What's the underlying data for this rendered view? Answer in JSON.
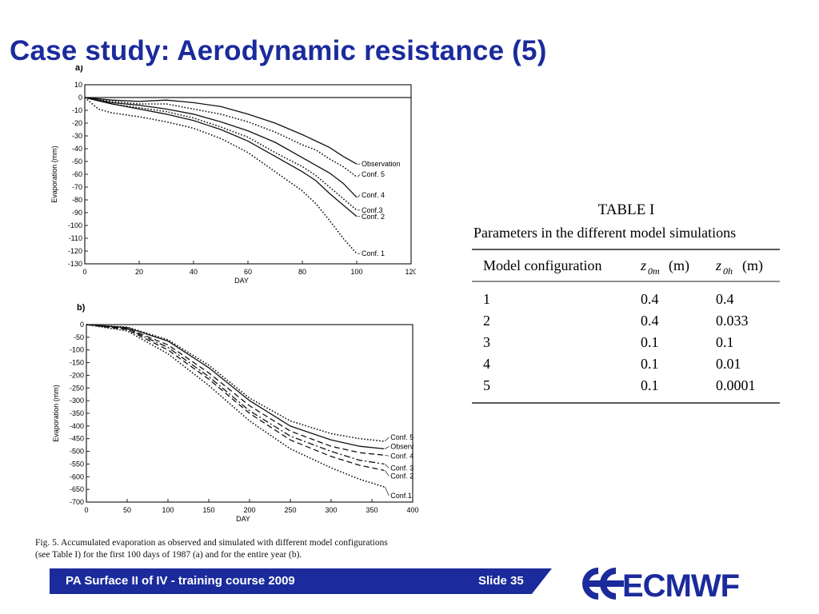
{
  "slide": {
    "title": "Case study: Aerodynamic resistance (5)",
    "footer_course": "PA Surface II of IV - training course 2009",
    "footer_slide": "Slide 35",
    "logo_text": "ECMWF",
    "colors": {
      "title": "#1b2b9c",
      "footer": "#1b2b9c"
    }
  },
  "caption": {
    "line1": "Fig. 5.   Accumulated evaporation as observed and simulated with different model configurations",
    "line2": "(see Table I) for the first 100 days of 1987 (a) and for the entire year (b)."
  },
  "table": {
    "title": "TABLE I",
    "subtitle": "Parameters in the different model simulations",
    "headers": [
      "Model configuration",
      "z0m (m)",
      "z0h (m)"
    ],
    "rows": [
      [
        "1",
        "0.4",
        "0.4"
      ],
      [
        "2",
        "0.4",
        "0.033"
      ],
      [
        "3",
        "0.1",
        "0.1"
      ],
      [
        "4",
        "0.1",
        "0.01"
      ],
      [
        "5",
        "0.1",
        "0.0001"
      ]
    ]
  },
  "chart_data": [
    {
      "type": "line",
      "panel": "a)",
      "xlabel": "DAY",
      "ylabel": "Evaporation (mm)",
      "xlim": [
        0,
        120
      ],
      "ylim": [
        -130,
        10
      ],
      "xticks": [
        0,
        20,
        40,
        60,
        80,
        100,
        120
      ],
      "yticks": [
        10,
        0,
        -10,
        -20,
        -30,
        -40,
        -50,
        -60,
        -70,
        -80,
        -90,
        -100,
        -110,
        -120,
        -130
      ],
      "reference_line": 0,
      "series": [
        {
          "name": "Observation",
          "style": "solid",
          "x": [
            0,
            10,
            20,
            30,
            40,
            50,
            60,
            70,
            80,
            85,
            90,
            95,
            100
          ],
          "y": [
            0,
            -2,
            -3,
            -2,
            -4,
            -7,
            -13,
            -20,
            -29,
            -34,
            -39,
            -46,
            -52
          ]
        },
        {
          "name": "Conf. 5",
          "style": "dotted",
          "x": [
            0,
            10,
            20,
            30,
            40,
            50,
            60,
            70,
            80,
            85,
            90,
            95,
            100
          ],
          "y": [
            0,
            -3,
            -5,
            -5,
            -9,
            -13,
            -19,
            -27,
            -37,
            -41,
            -48,
            -54,
            -62
          ]
        },
        {
          "name": "Conf. 4",
          "style": "solid",
          "x": [
            0,
            10,
            20,
            30,
            40,
            50,
            60,
            70,
            80,
            85,
            90,
            95,
            100
          ],
          "y": [
            0,
            -4,
            -6,
            -9,
            -13,
            -19,
            -26,
            -35,
            -47,
            -53,
            -59,
            -67,
            -78
          ]
        },
        {
          "name": "Conf.3",
          "style": "dotted",
          "x": [
            0,
            10,
            20,
            30,
            40,
            50,
            60,
            70,
            80,
            85,
            90,
            95,
            100
          ],
          "y": [
            0,
            -5,
            -8,
            -11,
            -16,
            -23,
            -31,
            -43,
            -54,
            -61,
            -70,
            -79,
            -88
          ]
        },
        {
          "name": "Conf. 2",
          "style": "solid",
          "x": [
            0,
            10,
            20,
            30,
            40,
            50,
            60,
            70,
            80,
            85,
            90,
            95,
            100
          ],
          "y": [
            0,
            -5,
            -9,
            -13,
            -18,
            -25,
            -34,
            -46,
            -58,
            -65,
            -75,
            -84,
            -93
          ]
        },
        {
          "name": "Conf. 1",
          "style": "dotted",
          "x": [
            0,
            5,
            10,
            20,
            30,
            40,
            50,
            60,
            70,
            80,
            85,
            90,
            95,
            100
          ],
          "y": [
            0,
            -9,
            -12,
            -15,
            -19,
            -24,
            -32,
            -43,
            -58,
            -73,
            -83,
            -96,
            -110,
            -122
          ]
        }
      ]
    },
    {
      "type": "line",
      "panel": "b)",
      "xlabel": "DAY",
      "ylabel": "Evaporation (mm)",
      "xlim": [
        0,
        400
      ],
      "ylim": [
        -700,
        0
      ],
      "xticks": [
        0,
        50,
        100,
        150,
        200,
        250,
        300,
        350,
        400
      ],
      "yticks": [
        0,
        -50,
        -100,
        -150,
        -200,
        -250,
        -300,
        -350,
        -400,
        -450,
        -500,
        -550,
        -600,
        -650,
        -700
      ],
      "series": [
        {
          "name": "Conf. 5",
          "style": "dotted",
          "x": [
            0,
            50,
            100,
            150,
            200,
            250,
            300,
            335,
            365
          ],
          "y": [
            0,
            -10,
            -60,
            -160,
            -290,
            -380,
            -430,
            -450,
            -460
          ]
        },
        {
          "name": "Observ",
          "style": "solid",
          "x": [
            0,
            50,
            100,
            150,
            200,
            250,
            300,
            335,
            365
          ],
          "y": [
            0,
            -12,
            -65,
            -170,
            -300,
            -400,
            -455,
            -480,
            -490
          ]
        },
        {
          "name": "Conf. 4",
          "style": "dashed",
          "x": [
            0,
            50,
            100,
            150,
            200,
            250,
            300,
            335,
            365
          ],
          "y": [
            0,
            -15,
            -80,
            -190,
            -320,
            -420,
            -480,
            -505,
            -515
          ]
        },
        {
          "name": "Conf. 3",
          "style": "dashdot",
          "x": [
            0,
            50,
            100,
            150,
            200,
            250,
            300,
            335,
            365
          ],
          "y": [
            0,
            -17,
            -90,
            -205,
            -340,
            -440,
            -500,
            -535,
            -550
          ]
        },
        {
          "name": "Conf. 2",
          "style": "dashed",
          "x": [
            0,
            50,
            100,
            150,
            200,
            250,
            300,
            335,
            365
          ],
          "y": [
            0,
            -20,
            -100,
            -215,
            -350,
            -455,
            -520,
            -555,
            -575
          ]
        },
        {
          "name": "Conf.1",
          "style": "dotted",
          "x": [
            0,
            50,
            100,
            150,
            200,
            250,
            300,
            335,
            365
          ],
          "y": [
            0,
            -25,
            -115,
            -240,
            -380,
            -490,
            -565,
            -610,
            -640
          ]
        }
      ]
    }
  ]
}
